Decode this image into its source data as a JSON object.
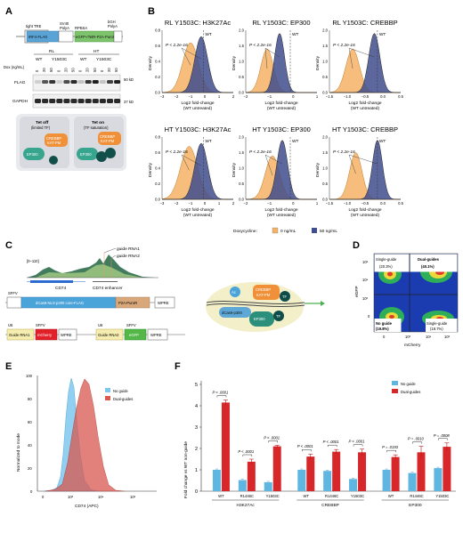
{
  "panels": {
    "A": "A",
    "B": "B",
    "C": "C",
    "D": "D",
    "E": "E",
    "F": "F"
  },
  "panelA": {
    "construct": {
      "tight_tre": "tight TRE",
      "irf4_flag": "IRF4-FLAG",
      "sv40": "SV40",
      "polya1": "PolyA",
      "rpbsa": "RPBSA",
      "egfp": "eGFP-rTetR-P2A-PuroR",
      "bgh": "bGH",
      "polya2": "PolyA"
    },
    "groups": [
      "RL",
      "HT"
    ],
    "lanes": [
      "WT",
      "Y1503C",
      "WT",
      "Y1503C"
    ],
    "dox_label": "Dox (ng/mL)",
    "dox": [
      "0",
      "20",
      "50",
      "0",
      "20",
      "50",
      "0",
      "20",
      "50",
      "0",
      "20",
      "50"
    ],
    "flag": "FLAG",
    "gapdh": "GAPDH",
    "kd50": "50 kD",
    "kd37": "37 kD",
    "tet_off_title": "Tet off",
    "tet_off_sub": "(limited TF)",
    "tet_on_title": "Tet on",
    "tet_on_sub": "(TF saturation)",
    "crebbp": "CREBBP",
    "katpm": "KAT-PM",
    "ep300": "EP300"
  },
  "panelB": {
    "y_label": "Density",
    "x_label1": "Log2 fold-change",
    "x_label2": "(WT untreated)",
    "wt": "WT",
    "pval": "P < 2.2e-16",
    "legend_title": "Doxycycline:",
    "legend": [
      "0 ng/mL",
      "50 ng/mL"
    ],
    "colors": {
      "dox0": "#f4b266",
      "dox50": "#404e8c"
    },
    "titles": [
      "RL Y1503C: H3K27Ac",
      "RL Y1503C: EP300",
      "RL Y1503C: CREBBP",
      "HT Y1503C: H3K27Ac",
      "HT Y1503C: EP300",
      "HT Y1503C: CREBBP"
    ],
    "yticks": [
      "0.0",
      "0.2",
      "0.4",
      "0.6",
      "0.8"
    ],
    "yticks_b": [
      "0.0",
      "0.5",
      "1.0",
      "1.5",
      "2.0"
    ],
    "xticks1": [
      "−3",
      "−2",
      "−1",
      "0",
      "1",
      "2"
    ],
    "xticks2": [
      "−2",
      "−1",
      "0",
      "1"
    ],
    "xticks3": [
      "−1.5",
      "−1.0",
      "−0.5",
      "0.0",
      "0.5"
    ]
  },
  "panelC": {
    "scale": "[0–110]",
    "guide1": "guide RNA1",
    "guide2": "guide RNA2",
    "cd74": "CD74",
    "cd74enh": "CD74 enhancer",
    "sffv": "SFFV",
    "dcas9": "dCas9-NLS-p300 core-FLAG",
    "p2a": "P2A-PuroR",
    "wpre": "WPRE",
    "u6": "U6",
    "grna1": "Guide RNA1",
    "mcherry": "mCherry",
    "grna2": "Guide RNA2",
    "egfp": "eGFP",
    "ac": "Ac",
    "crebbp": "CREBBP",
    "katpm": "KAT-PM",
    "tf": "TF",
    "dcas9p300": "dCas9-p300",
    "ep300": "EP300"
  },
  "panelD": {
    "single_tl": "Single-guide",
    "single_tl_pct": "(20.3%)",
    "dual": "Dual-guides",
    "dual_pct": "(40.1%)",
    "none": "No guide",
    "none_pct": "(19.8%)",
    "single_br": "Single-guide",
    "single_br_pct": "(19.7%)",
    "y": "eGFP",
    "x": "mCherry",
    "yticks": [
      "10⁵",
      "10⁴",
      "10³",
      "0"
    ],
    "xticks": [
      "0",
      "10³",
      "10⁴",
      "10⁵"
    ]
  },
  "panelE": {
    "y_label": "Normalized to mode",
    "x_label": "CD74 (APC)",
    "legend": [
      "No guide",
      "Dual-guides"
    ],
    "yticks": [
      "0",
      "20",
      "40",
      "60",
      "80",
      "100"
    ],
    "xticks": [
      "0",
      "10³",
      "10⁴",
      "10⁵"
    ]
  },
  "chart_data": {
    "type": "bar",
    "ylabel": "Fold change vs WT non-guide",
    "ylim": [
      0,
      5
    ],
    "yticks": [
      "0",
      "1",
      "2",
      "3",
      "4",
      "5"
    ],
    "groups": [
      "H3K27Ac",
      "CREBBP",
      "EP300"
    ],
    "categories": [
      "WT",
      "R1446C",
      "Y1503C"
    ],
    "series": [
      {
        "name": "No guide",
        "color": "#5fb6e0",
        "values": [
          [
            1.0,
            0.52,
            0.42
          ],
          [
            1.0,
            0.95,
            0.57
          ],
          [
            1.0,
            0.85,
            1.08
          ]
        ]
      },
      {
        "name": "Dual-guides",
        "color": "#d8272a",
        "values": [
          [
            4.15,
            1.38,
            2.1
          ],
          [
            1.62,
            1.85,
            1.82
          ],
          [
            1.6,
            1.82,
            2.08
          ]
        ]
      }
    ],
    "errors_dual": [
      [
        0.12,
        0.12,
        0.05
      ],
      [
        0.12,
        0.1,
        0.15
      ],
      [
        0.1,
        0.28,
        0.18
      ]
    ],
    "pvalues": [
      [
        "P < .0001",
        "P < .0001",
        "P < .0001"
      ],
      [
        "P < .0001",
        "P < .0001",
        "P < .0001"
      ],
      [
        "P = .0193",
        "P = .0010",
        "P = .0008"
      ]
    ]
  }
}
